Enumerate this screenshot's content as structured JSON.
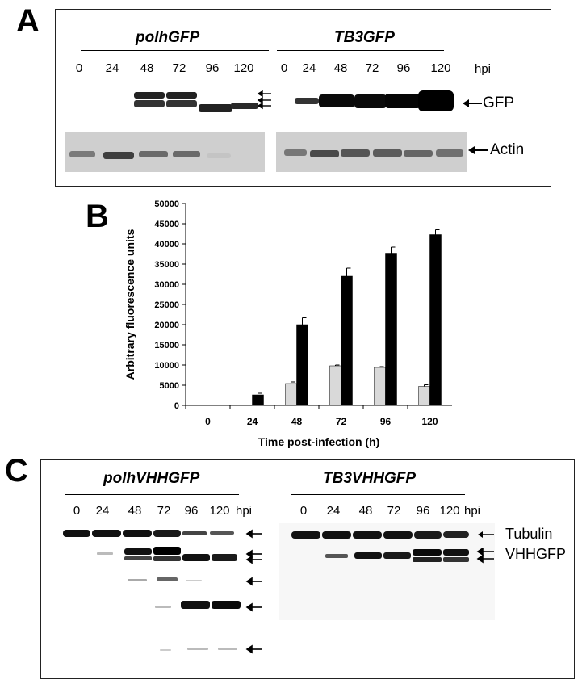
{
  "panel_a": {
    "letter": "A",
    "left_construct": "polhGFP",
    "right_construct": "TB3GFP",
    "left_lanes": [
      "0",
      "24",
      "48",
      "72",
      "96",
      "120"
    ],
    "right_lanes": [
      "0",
      "24",
      "48",
      "72",
      "96",
      "120"
    ],
    "unit": "hpi",
    "gfp_label": "GFP",
    "actin_label": "Actin"
  },
  "panel_b": {
    "letter": "B"
  },
  "chart_data": {
    "type": "bar",
    "categories": [
      "0",
      "24",
      "48",
      "72",
      "96",
      "120"
    ],
    "series": [
      {
        "values": [
          50,
          150,
          5400,
          9800,
          9400,
          4700
        ],
        "errors": [
          0,
          0,
          400,
          200,
          200,
          400
        ],
        "color": "#d9d9d9"
      },
      {
        "values": [
          100,
          2600,
          20000,
          32000,
          37700,
          42300
        ],
        "errors": [
          0,
          400,
          1700,
          2000,
          1500,
          1200
        ],
        "color": "#000000"
      }
    ],
    "title": "",
    "xlabel": "Time post-infection (h)",
    "ylabel": "Arbitrary fluorescence units",
    "ylim": [
      0,
      50000
    ],
    "yticks": [
      0,
      5000,
      10000,
      15000,
      20000,
      25000,
      30000,
      35000,
      40000,
      45000,
      50000
    ],
    "grid": false
  },
  "panel_c": {
    "letter": "C",
    "left_construct": "polhVHHGFP",
    "right_construct": "TB3VHHGFP",
    "left_lanes": [
      "0",
      "24",
      "48",
      "72",
      "96",
      "120"
    ],
    "right_lanes": [
      "0",
      "24",
      "48",
      "72",
      "96",
      "120"
    ],
    "unit": "hpi",
    "tubulin_label": "Tubulin",
    "vhhgfp_label": "VHHGFP"
  }
}
